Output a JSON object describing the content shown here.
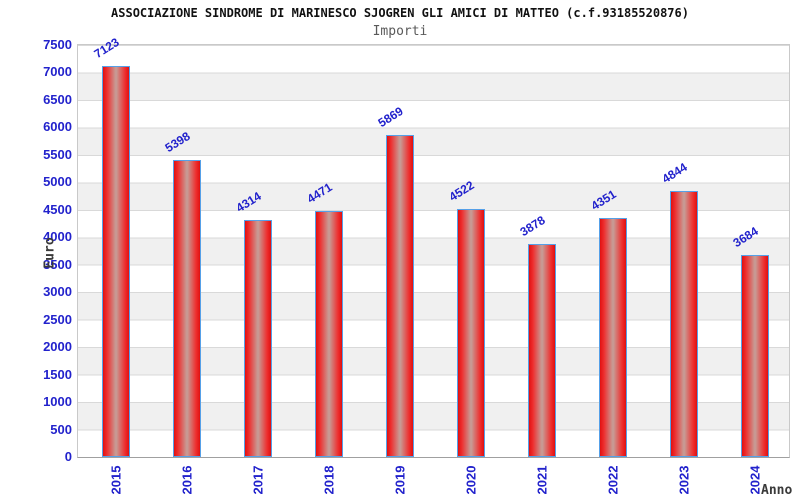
{
  "chart_data": {
    "type": "bar",
    "title": "ASSOCIAZIONE SINDROME DI MARINESCO SJOGREN GLI AMICI DI MATTEO (c.f.93185520876)",
    "subtitle": "Importi",
    "xlabel": "Anno",
    "ylabel": "Euro",
    "categories": [
      "2015",
      "2016",
      "2017",
      "2018",
      "2019",
      "2020",
      "2021",
      "2022",
      "2023",
      "2024"
    ],
    "values": [
      7123,
      5398,
      4314,
      4471,
      5869,
      4522,
      3878,
      4351,
      4844,
      3684
    ],
    "ylim": [
      0,
      7500
    ],
    "ytick_step": 500,
    "grid": true,
    "legend": "none",
    "band_colors": [
      "#ffffff",
      "#f0f0f0"
    ],
    "colors": {
      "bar_edge": "#e01010",
      "bar_mid": "#ee2e2e",
      "bar_center": "#c89a94",
      "bar_border": "#55a0e8",
      "tick_label": "#2222cc",
      "value_label": "#2222cc",
      "title": "#111111",
      "subtitle": "#5a5a5a",
      "axis_title": "#3a3a3a",
      "gridline": "#d9d9d9"
    }
  }
}
